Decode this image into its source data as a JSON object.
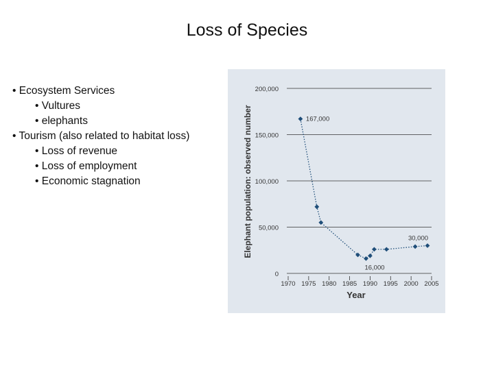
{
  "slide": {
    "title": "Loss of Species",
    "bullets": [
      {
        "text": "• Ecosystem Services",
        "level": 1
      },
      {
        "text": "• Vultures",
        "level": 2
      },
      {
        "text": "• elephants",
        "level": 2
      },
      {
        "text": "• Tourism (also related to habitat loss)",
        "level": 1
      },
      {
        "text": "• Loss of revenue",
        "level": 2
      },
      {
        "text": "• Loss of employment",
        "level": 2
      },
      {
        "text": "• Economic stagnation",
        "level": 2
      }
    ]
  },
  "chart_data": {
    "type": "line",
    "xlabel": "Year",
    "ylabel": "Elephant population: observed number",
    "xlim": [
      1970,
      2005
    ],
    "ylim": [
      0,
      200000
    ],
    "x_ticks": [
      1970,
      1975,
      1980,
      1985,
      1990,
      1995,
      2000,
      2005
    ],
    "y_ticks": [
      0,
      50000,
      100000,
      150000,
      200000
    ],
    "x_tick_labels": [
      "1970",
      "1975",
      "1980",
      "1985",
      "1990",
      "1995",
      "2000",
      "2005"
    ],
    "y_tick_labels": [
      "0",
      "50,000",
      "100,000",
      "150,000",
      "200,000"
    ],
    "grid": "horizontal",
    "line_style": "dotted",
    "series_color": "#1f4e79",
    "points": [
      {
        "x": 1973,
        "y": 167000
      },
      {
        "x": 1977,
        "y": 72000
      },
      {
        "x": 1978,
        "y": 55000
      },
      {
        "x": 1987,
        "y": 20000
      },
      {
        "x": 1989,
        "y": 16000
      },
      {
        "x": 1990,
        "y": 19000
      },
      {
        "x": 1991,
        "y": 26000
      },
      {
        "x": 1994,
        "y": 26000
      },
      {
        "x": 2001,
        "y": 29000
      },
      {
        "x": 2004,
        "y": 30000
      }
    ],
    "annotations": [
      {
        "text": "167,000",
        "x": 1973,
        "y": 167000,
        "side": "right"
      },
      {
        "text": "16,000",
        "x": 1989,
        "y": 16000,
        "side": "below"
      },
      {
        "text": "30,000",
        "x": 2004,
        "y": 30000,
        "side": "above"
      }
    ]
  }
}
